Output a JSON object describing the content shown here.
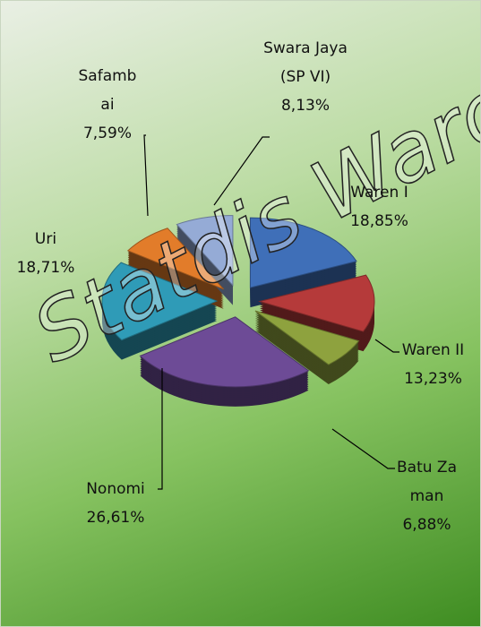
{
  "chart_data": {
    "type": "pie",
    "categories": [
      "Waren I",
      "Waren II",
      "Batu Zaman",
      "Nonomi",
      "Uri",
      "Safambai",
      "Swara Jaya (SP VI)"
    ],
    "values": [
      18.85,
      13.23,
      6.88,
      26.61,
      18.71,
      7.59,
      8.13
    ],
    "value_labels": [
      "18,85%",
      "13,23%",
      "6,88%",
      "26,61%",
      "18,71%",
      "7,59%",
      "8,13%"
    ],
    "colors": [
      "#3f6fb8",
      "#b53a3a",
      "#8ea23e",
      "#6d4b96",
      "#2f9bb7",
      "#e27c2a",
      "#95abd6"
    ],
    "watermark": "Statdis Warop"
  }
}
